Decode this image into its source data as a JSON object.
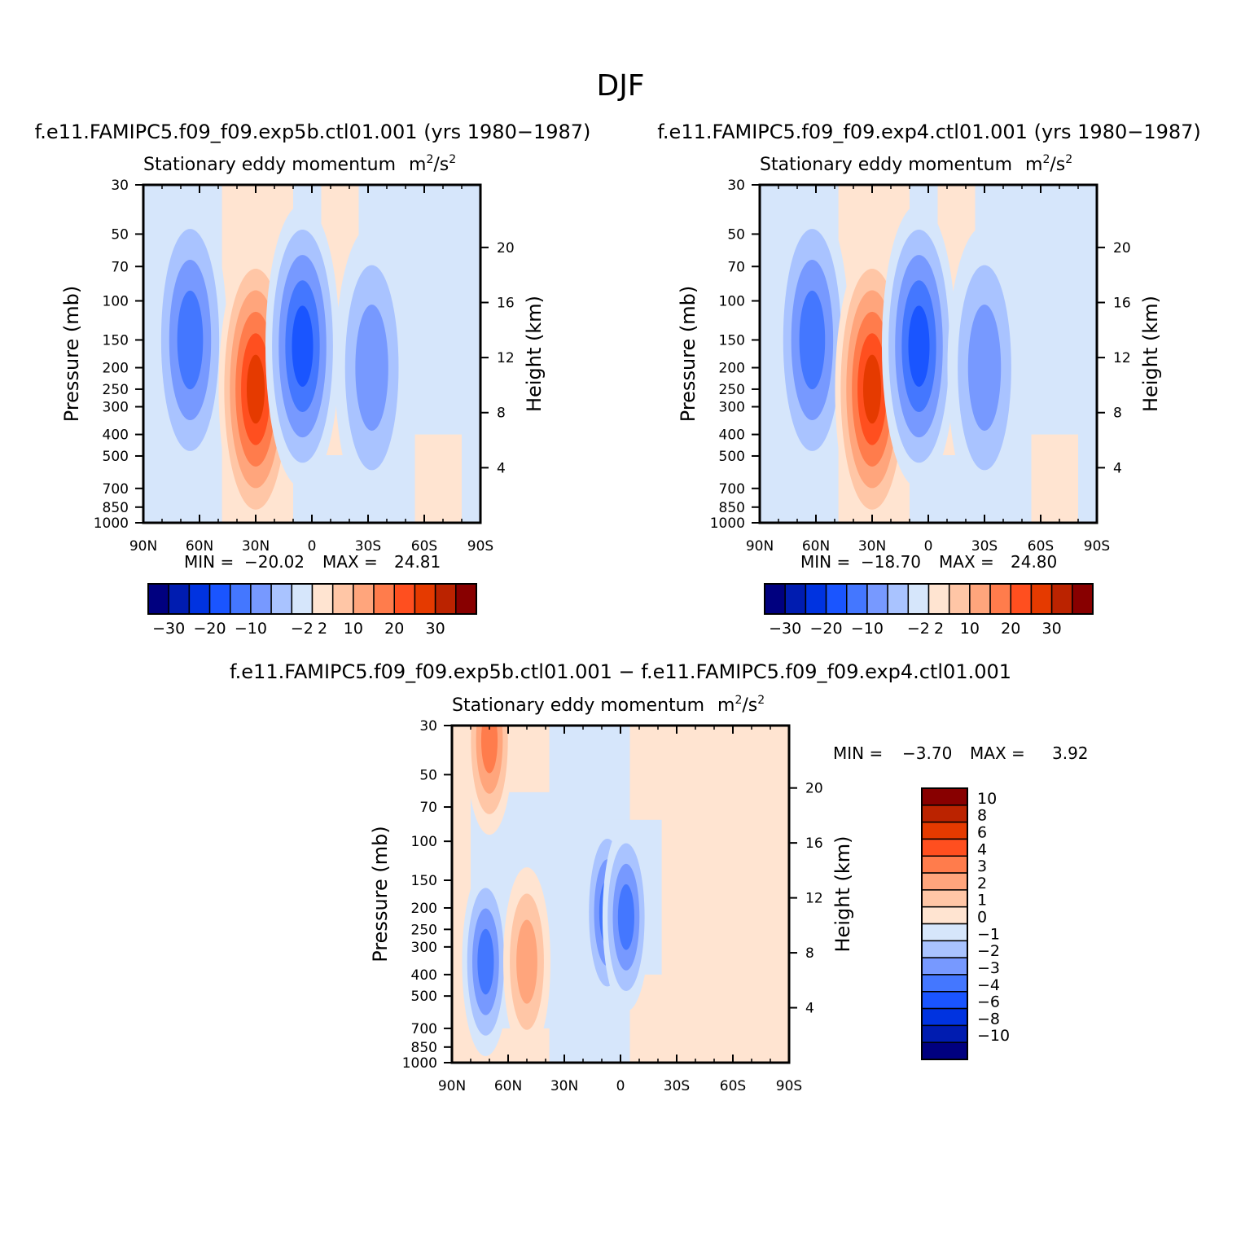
{
  "figure": {
    "title": "DJF",
    "units_base": "m",
    "units_exp": "2",
    "units_mid": "/s",
    "units_exp2": "2"
  },
  "chart_data": [
    {
      "type": "heatmap",
      "case_title": "f.e11.FAMIPC5.f09_f09.exp5b.ctl01.001 (yrs 1980-1987)",
      "title": "Stationary eddy momentum",
      "ylabel": "Pressure (mb)",
      "ylabel_right": "Height (km)",
      "x_ticks": [
        "90N",
        "60N",
        "30N",
        "0",
        "30S",
        "60S",
        "90S"
      ],
      "y_ticks": [
        "30",
        "50",
        "70",
        "100",
        "150",
        "200",
        "250",
        "300",
        "400",
        "500",
        "700",
        "850",
        "1000"
      ],
      "y_ticks_right": [
        "20",
        "16",
        "12",
        "8",
        "4"
      ],
      "min_label": "MIN =",
      "min_value": "-20.02",
      "max_label": "MAX =",
      "max_value": "24.81",
      "colorbar_ticks": [
        "-30",
        "-20",
        "-10",
        "-2",
        "2",
        "10",
        "20",
        "30"
      ],
      "features": [
        {
          "lat": 65,
          "p": 150,
          "value": -12
        },
        {
          "lat": 30,
          "p": 250,
          "value": 22
        },
        {
          "lat": 5,
          "p": 160,
          "value": -16
        },
        {
          "lat": -32,
          "p": 200,
          "value": -5
        }
      ]
    },
    {
      "type": "heatmap",
      "case_title": "f.e11.FAMIPC5.f09_f09.exp4.ctl01.001 (yrs 1980-1987)",
      "title": "Stationary eddy momentum",
      "ylabel": "Pressure (mb)",
      "ylabel_right": "Height (km)",
      "x_ticks": [
        "90N",
        "60N",
        "30N",
        "0",
        "30S",
        "60S",
        "90S"
      ],
      "y_ticks": [
        "30",
        "50",
        "70",
        "100",
        "150",
        "200",
        "250",
        "300",
        "400",
        "500",
        "700",
        "850",
        "1000"
      ],
      "y_ticks_right": [
        "20",
        "16",
        "12",
        "8",
        "4"
      ],
      "min_label": "MIN =",
      "min_value": "-18.70",
      "max_label": "MAX =",
      "max_value": "24.80",
      "colorbar_ticks": [
        "-30",
        "-20",
        "-10",
        "-2",
        "2",
        "10",
        "20",
        "30"
      ],
      "features": [
        {
          "lat": 62,
          "p": 150,
          "value": -12
        },
        {
          "lat": 30,
          "p": 250,
          "value": 22
        },
        {
          "lat": 5,
          "p": 160,
          "value": -15
        },
        {
          "lat": -30,
          "p": 200,
          "value": -5
        }
      ]
    },
    {
      "type": "heatmap",
      "case_title": "f.e11.FAMIPC5.f09_f09.exp5b.ctl01.001 - f.e11.FAMIPC5.f09_f09.exp4.ctl01.001",
      "title": "Stationary eddy momentum",
      "ylabel": "Pressure (mb)",
      "ylabel_right": "Height (km)",
      "x_ticks": [
        "90N",
        "60N",
        "30N",
        "0",
        "30S",
        "60S",
        "90S"
      ],
      "y_ticks": [
        "30",
        "50",
        "70",
        "100",
        "150",
        "200",
        "250",
        "300",
        "400",
        "500",
        "700",
        "850",
        "1000"
      ],
      "y_ticks_right": [
        "20",
        "16",
        "12",
        "8",
        "4"
      ],
      "min_label": "MIN =",
      "min_value": "-3.70",
      "max_label": "MAX =",
      "max_value": "3.92",
      "colorbar_ticks": [
        "10",
        "8",
        "6",
        "4",
        "3",
        "2",
        "1",
        "0",
        "-1",
        "-2",
        "-3",
        "-4",
        "-6",
        "-8",
        "-10"
      ],
      "features": [
        {
          "lat": 70,
          "p": 35,
          "value": 3.5
        },
        {
          "lat": 72,
          "p": 350,
          "value": -3
        },
        {
          "lat": 50,
          "p": 350,
          "value": 3
        },
        {
          "lat": 7,
          "p": 210,
          "value": -3.5
        },
        {
          "lat": -3,
          "p": 220,
          "value": -3.5
        }
      ]
    }
  ],
  "colors": {
    "abs_palette": [
      "#00007f",
      "#001cb0",
      "#0033e0",
      "#1a55ff",
      "#4477ff",
      "#7799ff",
      "#a9c3ff",
      "#d6e6fb",
      "#ffe4d1",
      "#ffc6a6",
      "#ffa57c",
      "#ff7c4c",
      "#ff4f1f",
      "#e53a00",
      "#bb2300",
      "#880000"
    ],
    "diff_palette": [
      "#00007f",
      "#001cb0",
      "#0033e0",
      "#1a55ff",
      "#4477ff",
      "#7799ff",
      "#a9c3ff",
      "#d6e6fb",
      "#ffe4d1",
      "#ffc6a6",
      "#ffa57c",
      "#ff7c4c",
      "#ff4f1f",
      "#e53a00",
      "#bb2300",
      "#880000"
    ]
  }
}
